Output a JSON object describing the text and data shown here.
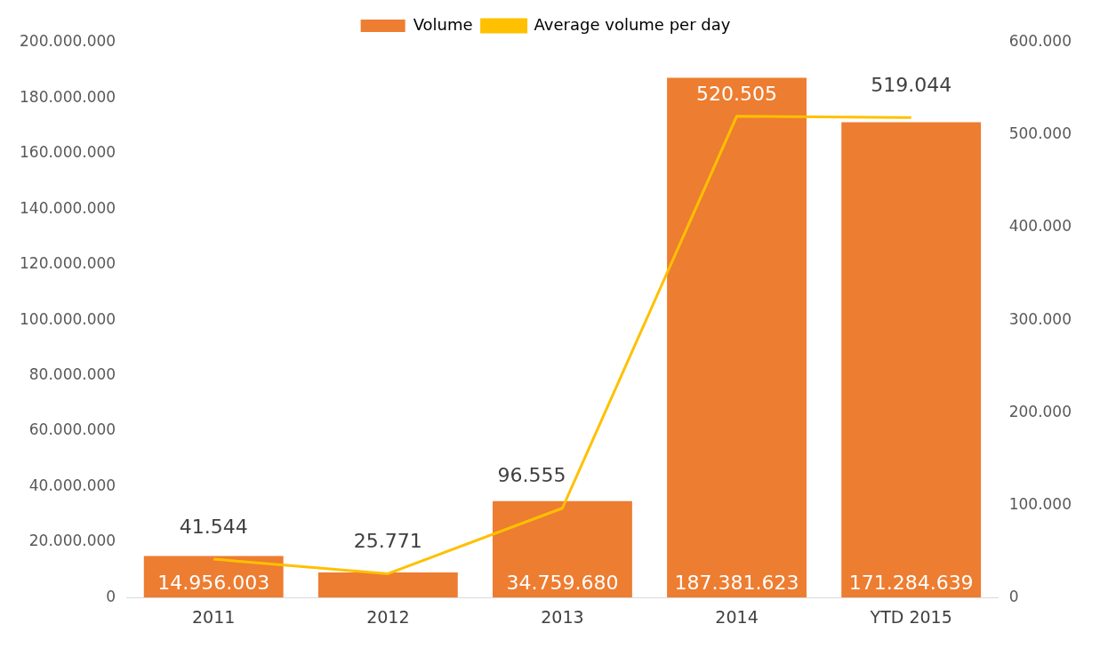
{
  "chart_data": {
    "type": "bar",
    "categories": [
      "2011",
      "2012",
      "2013",
      "2014",
      "YTD 2015"
    ],
    "series": [
      {
        "name": "Volume",
        "color": "#ed7d31",
        "values": [
          14956003,
          9000000,
          34759680,
          187381623,
          171284639
        ],
        "value_labels": [
          "14.956.003",
          null,
          "34.759.680",
          "187.381.623",
          "171.284.639"
        ]
      },
      {
        "name": "Average volume per day",
        "type": "line",
        "axis": "y2",
        "color": "#ffc000",
        "values": [
          41544,
          25771,
          96555,
          520505,
          519044
        ],
        "value_labels": [
          "41.544",
          "25.771",
          "96.555",
          "520.505",
          "519.044"
        ]
      }
    ],
    "ylim": [
      0,
      200000000
    ],
    "yticks": [
      0,
      {
        "value": 20000000,
        "label": "20.000.000"
      },
      {
        "value": 40000000,
        "label": "40.000.000"
      },
      {
        "value": 60000000,
        "label": "60.000.000"
      },
      {
        "value": 80000000,
        "label": "80.000.000"
      },
      {
        "value": 100000000,
        "label": "100.000.000"
      },
      {
        "value": 120000000,
        "label": "120.000.000"
      },
      {
        "value": 140000000,
        "label": "140.000.000"
      },
      {
        "value": 160000000,
        "label": "160.000.000"
      },
      {
        "value": 180000000,
        "label": "180.000.000"
      },
      {
        "value": 200000000,
        "label": "200.000.000"
      }
    ],
    "y2lim": [
      0,
      600000
    ],
    "y2ticks": [
      0,
      {
        "value": 100000,
        "label": "100.000"
      },
      {
        "value": 200000,
        "label": "200.000"
      },
      {
        "value": 300000,
        "label": "300.000"
      },
      {
        "value": 400000,
        "label": "400.000"
      },
      {
        "value": 500000,
        "label": "500.000"
      },
      {
        "value": 600000,
        "label": "600.000"
      }
    ],
    "grid": false,
    "legend": "top",
    "marker": "none"
  }
}
